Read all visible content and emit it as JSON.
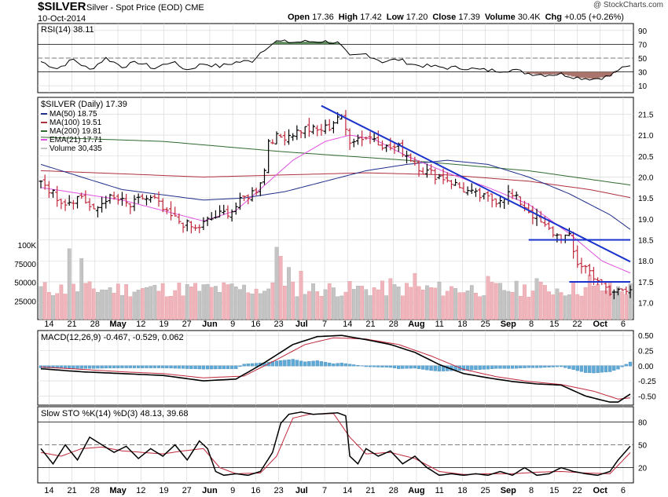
{
  "header": {
    "symbol": "$SILVER",
    "name": "Silver - Spot Price (EOD)",
    "exchange": "CME",
    "watermark": "@ StockCharts.com",
    "date": "10-Oct-2014",
    "quote_items": [
      {
        "label": "Open",
        "value": "17.36"
      },
      {
        "label": "High",
        "value": "17.42"
      },
      {
        "label": "Low",
        "value": "17.20"
      },
      {
        "label": "Close",
        "value": "17.39"
      },
      {
        "label": "Volume",
        "value": "30.4K"
      },
      {
        "label": "Chg",
        "value": "+0.05 (+0.26%)"
      }
    ]
  },
  "colors": {
    "up": "#000000",
    "down": "#c0283c",
    "ma50": "#1f2f8a",
    "ma100": "#b03040",
    "ma200": "#2e6b2e",
    "ema21": "#e050e0",
    "trend": "#1a33cc",
    "vol_up": "#c4c4c4",
    "vol_down": "#f0b4bc",
    "hist": "#5ea9d6",
    "rsi_over": "#5d8c5d",
    "rsi_under": "#a8746c",
    "grid": "#d4d4d4"
  },
  "chart_data": {
    "type": "ohlc",
    "x_tick_labels": [
      "14",
      "21",
      "28",
      "May",
      "12",
      "19",
      "27",
      "Jun",
      "9",
      "16",
      "23",
      "Jul",
      "7",
      "14",
      "21",
      "28",
      "Aug",
      "11",
      "18",
      "25",
      "Sep",
      "8",
      "15",
      "22",
      "Oct",
      "6"
    ],
    "main": {
      "title": "$SILVER (Daily) 17.39",
      "y_ticks": [
        17.0,
        17.5,
        18.0,
        18.5,
        19.0,
        19.5,
        20.0,
        20.5,
        21.0,
        21.5
      ],
      "ylim": [
        16.6,
        21.9
      ],
      "legend": [
        {
          "label": "MA(50) 18.75",
          "color_key": "ma50"
        },
        {
          "label": "MA(100) 19.51",
          "color_key": "ma100"
        },
        {
          "label": "MA(200) 19.81",
          "color_key": "ma200"
        },
        {
          "label": "EMA(21) 17.71",
          "color_key": "ema21"
        },
        {
          "label": "Volume 30,435",
          "color_key": "vol_up"
        }
      ],
      "close_anchors": [
        [
          0,
          19.95
        ],
        [
          3,
          19.6
        ],
        [
          6,
          19.4
        ],
        [
          10,
          19.55
        ],
        [
          13,
          19.15
        ],
        [
          16,
          19.5
        ],
        [
          19,
          19.45
        ],
        [
          22,
          19.3
        ],
        [
          25,
          19.5
        ],
        [
          28,
          19.45
        ],
        [
          31,
          19.1
        ],
        [
          35,
          18.9
        ],
        [
          38,
          18.75
        ],
        [
          41,
          18.95
        ],
        [
          44,
          19.1
        ],
        [
          47,
          19.2
        ],
        [
          50,
          19.5
        ],
        [
          53,
          19.7
        ],
        [
          55,
          20.15
        ],
        [
          56,
          20.9
        ],
        [
          59,
          20.95
        ],
        [
          62,
          21.05
        ],
        [
          65,
          21.15
        ],
        [
          68,
          21.1
        ],
        [
          71,
          21.2
        ],
        [
          73,
          21.45
        ],
        [
          74,
          21.35
        ],
        [
          76,
          20.9
        ],
        [
          79,
          20.95
        ],
        [
          82,
          20.95
        ],
        [
          85,
          20.7
        ],
        [
          88,
          20.7
        ],
        [
          91,
          20.45
        ],
        [
          94,
          20.15
        ],
        [
          97,
          20.05
        ],
        [
          100,
          19.95
        ],
        [
          103,
          19.75
        ],
        [
          106,
          19.6
        ],
        [
          109,
          19.5
        ],
        [
          112,
          19.45
        ],
        [
          115,
          19.6
        ],
        [
          118,
          19.4
        ],
        [
          121,
          19.1
        ],
        [
          124,
          18.8
        ],
        [
          127,
          18.6
        ],
        [
          130,
          18.55
        ],
        [
          131,
          18.2
        ],
        [
          132,
          17.95
        ],
        [
          134,
          17.85
        ],
        [
          137,
          17.55
        ],
        [
          140,
          17.2
        ],
        [
          142,
          17.3
        ],
        [
          145,
          17.39
        ]
      ],
      "ma50": [
        [
          0,
          20.3
        ],
        [
          20,
          19.7
        ],
        [
          40,
          19.45
        ],
        [
          50,
          19.5
        ],
        [
          60,
          19.65
        ],
        [
          70,
          19.9
        ],
        [
          80,
          20.15
        ],
        [
          90,
          20.3
        ],
        [
          100,
          20.4
        ],
        [
          110,
          20.3
        ],
        [
          120,
          20.0
        ],
        [
          130,
          19.6
        ],
        [
          140,
          19.1
        ],
        [
          145,
          18.75
        ]
      ],
      "ma100": [
        [
          0,
          20.15
        ],
        [
          40,
          20.0
        ],
        [
          80,
          20.1
        ],
        [
          100,
          20.05
        ],
        [
          120,
          19.9
        ],
        [
          135,
          19.7
        ],
        [
          145,
          19.51
        ]
      ],
      "ma200": [
        [
          0,
          20.95
        ],
        [
          30,
          20.85
        ],
        [
          60,
          20.6
        ],
        [
          90,
          20.4
        ],
        [
          120,
          20.15
        ],
        [
          145,
          19.81
        ]
      ],
      "ema21": [
        [
          0,
          19.75
        ],
        [
          10,
          19.6
        ],
        [
          20,
          19.45
        ],
        [
          30,
          19.2
        ],
        [
          40,
          18.95
        ],
        [
          48,
          19.2
        ],
        [
          55,
          19.8
        ],
        [
          62,
          20.4
        ],
        [
          70,
          20.85
        ],
        [
          76,
          21.0
        ],
        [
          82,
          20.9
        ],
        [
          90,
          20.5
        ],
        [
          100,
          20.1
        ],
        [
          110,
          19.75
        ],
        [
          120,
          19.35
        ],
        [
          130,
          18.65
        ],
        [
          138,
          18.0
        ],
        [
          145,
          17.71
        ]
      ],
      "trendlines": [
        {
          "x1": 69,
          "y1": 21.7,
          "x2": 145,
          "y2": 17.98
        },
        {
          "x1": 120,
          "y1": 18.5,
          "x2": 145,
          "y2": 18.5
        },
        {
          "x1": 130,
          "y1": 17.5,
          "x2": 145,
          "y2": 17.5
        }
      ],
      "volume_axis": {
        "labels": [
          "25000",
          "50000",
          "75000",
          "100K"
        ],
        "values": [
          25000,
          50000,
          75000,
          100000
        ],
        "max": 100000
      },
      "volume_spikes": [
        [
          7,
          95000
        ],
        [
          10,
          82000
        ],
        [
          58,
          97000
        ],
        [
          59,
          85000
        ],
        [
          61,
          70000
        ],
        [
          64,
          65000
        ],
        [
          86,
          55000
        ],
        [
          92,
          62000
        ],
        [
          110,
          58000
        ],
        [
          122,
          55000
        ],
        [
          135,
          60000
        ]
      ]
    },
    "rsi": {
      "title": "RSI(14) 38.11",
      "y_ticks": [
        10,
        30,
        50,
        70,
        90
      ],
      "ylim": [
        0,
        100
      ],
      "values": [
        [
          0,
          45
        ],
        [
          4,
          35
        ],
        [
          8,
          48
        ],
        [
          12,
          33
        ],
        [
          16,
          50
        ],
        [
          20,
          38
        ],
        [
          24,
          44
        ],
        [
          28,
          35
        ],
        [
          32,
          45
        ],
        [
          36,
          33
        ],
        [
          40,
          42
        ],
        [
          44,
          38
        ],
        [
          48,
          44
        ],
        [
          52,
          46
        ],
        [
          54,
          58
        ],
        [
          56,
          68
        ],
        [
          58,
          74
        ],
        [
          62,
          73
        ],
        [
          66,
          74
        ],
        [
          70,
          74
        ],
        [
          73,
          72
        ],
        [
          74,
          66
        ],
        [
          76,
          52
        ],
        [
          80,
          56
        ],
        [
          84,
          45
        ],
        [
          88,
          48
        ],
        [
          92,
          40
        ],
        [
          96,
          38
        ],
        [
          100,
          36
        ],
        [
          104,
          36
        ],
        [
          108,
          33
        ],
        [
          112,
          32
        ],
        [
          116,
          33
        ],
        [
          120,
          28
        ],
        [
          124,
          26
        ],
        [
          128,
          27
        ],
        [
          132,
          22
        ],
        [
          136,
          20
        ],
        [
          140,
          24
        ],
        [
          142,
          33
        ],
        [
          145,
          38.11
        ]
      ]
    },
    "macd": {
      "title": "MACD(12,26,9) -0.467, -0.529, 0.062",
      "y_ticks": [
        0.5,
        0.25,
        0.0,
        -0.25,
        -0.5
      ],
      "ylim": [
        -0.65,
        0.58
      ],
      "macd": [
        [
          0,
          -0.05
        ],
        [
          10,
          -0.1
        ],
        [
          20,
          -0.13
        ],
        [
          30,
          -0.16
        ],
        [
          40,
          -0.25
        ],
        [
          48,
          -0.22
        ],
        [
          55,
          0.05
        ],
        [
          62,
          0.35
        ],
        [
          68,
          0.48
        ],
        [
          74,
          0.5
        ],
        [
          80,
          0.43
        ],
        [
          86,
          0.35
        ],
        [
          92,
          0.22
        ],
        [
          98,
          0.02
        ],
        [
          104,
          -0.13
        ],
        [
          110,
          -0.2
        ],
        [
          116,
          -0.26
        ],
        [
          122,
          -0.3
        ],
        [
          128,
          -0.32
        ],
        [
          134,
          -0.5
        ],
        [
          140,
          -0.6
        ],
        [
          142,
          -0.6
        ],
        [
          145,
          -0.467
        ]
      ],
      "signal": [
        [
          0,
          -0.02
        ],
        [
          10,
          -0.06
        ],
        [
          20,
          -0.1
        ],
        [
          30,
          -0.13
        ],
        [
          40,
          -0.2
        ],
        [
          50,
          -0.17
        ],
        [
          58,
          0.1
        ],
        [
          65,
          0.35
        ],
        [
          72,
          0.46
        ],
        [
          80,
          0.44
        ],
        [
          88,
          0.35
        ],
        [
          96,
          0.16
        ],
        [
          104,
          -0.06
        ],
        [
          112,
          -0.18
        ],
        [
          120,
          -0.26
        ],
        [
          128,
          -0.31
        ],
        [
          136,
          -0.42
        ],
        [
          142,
          -0.55
        ],
        [
          145,
          -0.529
        ]
      ]
    },
    "sto": {
      "title": "Slow STO %K(14) %D(3) 48.13, 39.68",
      "y_ticks": [
        20,
        50,
        80
      ],
      "ylim": [
        0,
        100
      ],
      "k": [
        [
          0,
          45
        ],
        [
          3,
          25
        ],
        [
          6,
          50
        ],
        [
          9,
          30
        ],
        [
          12,
          60
        ],
        [
          15,
          50
        ],
        [
          18,
          40
        ],
        [
          21,
          48
        ],
        [
          24,
          32
        ],
        [
          27,
          45
        ],
        [
          30,
          35
        ],
        [
          33,
          50
        ],
        [
          36,
          30
        ],
        [
          39,
          55
        ],
        [
          41,
          45
        ],
        [
          43,
          15
        ],
        [
          45,
          10
        ],
        [
          48,
          12
        ],
        [
          51,
          10
        ],
        [
          54,
          15
        ],
        [
          57,
          40
        ],
        [
          59,
          78
        ],
        [
          61,
          90
        ],
        [
          64,
          93
        ],
        [
          67,
          90
        ],
        [
          70,
          91
        ],
        [
          73,
          92
        ],
        [
          75,
          88
        ],
        [
          76,
          35
        ],
        [
          78,
          25
        ],
        [
          80,
          45
        ],
        [
          83,
          35
        ],
        [
          86,
          42
        ],
        [
          89,
          25
        ],
        [
          92,
          35
        ],
        [
          95,
          20
        ],
        [
          98,
          10
        ],
        [
          101,
          12
        ],
        [
          104,
          10
        ],
        [
          107,
          12
        ],
        [
          110,
          10
        ],
        [
          113,
          15
        ],
        [
          116,
          10
        ],
        [
          119,
          20
        ],
        [
          122,
          10
        ],
        [
          125,
          12
        ],
        [
          128,
          20
        ],
        [
          131,
          15
        ],
        [
          134,
          12
        ],
        [
          137,
          10
        ],
        [
          140,
          15
        ],
        [
          142,
          30
        ],
        [
          145,
          48.13
        ]
      ],
      "d": [
        [
          0,
          40
        ],
        [
          5,
          35
        ],
        [
          10,
          45
        ],
        [
          15,
          47
        ],
        [
          20,
          42
        ],
        [
          25,
          40
        ],
        [
          30,
          38
        ],
        [
          35,
          42
        ],
        [
          40,
          45
        ],
        [
          44,
          20
        ],
        [
          48,
          12
        ],
        [
          54,
          13
        ],
        [
          58,
          35
        ],
        [
          62,
          85
        ],
        [
          66,
          90
        ],
        [
          72,
          91
        ],
        [
          76,
          60
        ],
        [
          80,
          38
        ],
        [
          86,
          40
        ],
        [
          92,
          32
        ],
        [
          98,
          15
        ],
        [
          104,
          11
        ],
        [
          110,
          12
        ],
        [
          116,
          12
        ],
        [
          122,
          14
        ],
        [
          128,
          15
        ],
        [
          134,
          13
        ],
        [
          140,
          12
        ],
        [
          145,
          39.68
        ]
      ]
    }
  }
}
